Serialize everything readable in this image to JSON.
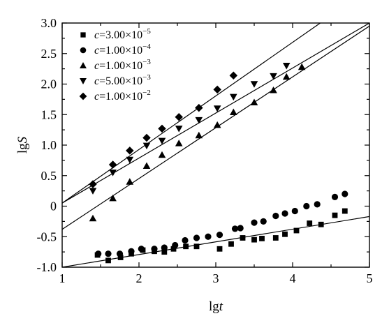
{
  "chart_data": {
    "type": "scatter",
    "xlabel_prefix": "lg",
    "xlabel_var": "t",
    "ylabel_prefix": "lg",
    "ylabel_var": "S",
    "xlim": [
      1,
      5
    ],
    "ylim": [
      -1.0,
      3.0
    ],
    "xticks": [
      "1",
      "2",
      "3",
      "4",
      "5"
    ],
    "yticks": [
      "-1.0",
      "-0.5",
      "0",
      "0.5",
      "1.0",
      "1.5",
      "2.0",
      "2.5",
      "3.0"
    ],
    "xtick_values": [
      1,
      2,
      3,
      4,
      5
    ],
    "ytick_values": [
      -1.0,
      -0.5,
      0,
      0.5,
      1.0,
      1.5,
      2.0,
      2.5,
      3.0
    ],
    "legend_position": "top-left",
    "series": [
      {
        "marker": "square",
        "legend_prefix": "c=3.00×10",
        "legend_exp": "−5",
        "x": [
          1.46,
          1.6,
          1.76,
          1.9,
          2.05,
          2.2,
          2.33,
          2.45,
          2.61,
          2.75,
          3.05,
          3.2,
          3.35,
          3.5,
          3.6,
          3.78,
          3.9,
          4.05,
          4.22,
          4.37,
          4.55,
          4.68
        ],
        "y": [
          -0.8,
          -0.89,
          -0.84,
          -0.78,
          -0.72,
          -0.74,
          -0.75,
          -0.7,
          -0.66,
          -0.66,
          -0.7,
          -0.62,
          -0.52,
          -0.55,
          -0.53,
          -0.52,
          -0.46,
          -0.4,
          -0.28,
          -0.3,
          -0.15,
          -0.08
        ],
        "fit": [
          [
            1.0,
            -1.0
          ],
          [
            5.0,
            -0.17
          ]
        ]
      },
      {
        "marker": "circle",
        "legend_prefix": "c=1.00×10",
        "legend_exp": "−4",
        "x": [
          1.47,
          1.6,
          1.75,
          1.9,
          2.03,
          2.2,
          2.33,
          2.47,
          2.6,
          2.75,
          2.9,
          3.05,
          3.25,
          3.32,
          3.5,
          3.62,
          3.78,
          3.9,
          4.03,
          4.18,
          4.32,
          4.55,
          4.68
        ],
        "y": [
          -0.78,
          -0.78,
          -0.78,
          -0.74,
          -0.7,
          -0.7,
          -0.68,
          -0.64,
          -0.56,
          -0.52,
          -0.5,
          -0.47,
          -0.37,
          -0.36,
          -0.27,
          -0.25,
          -0.16,
          -0.12,
          -0.08,
          0.0,
          0.03,
          0.15,
          0.2
        ]
      },
      {
        "marker": "triangle-up",
        "legend_prefix": "c=1.00×10",
        "legend_exp": "−3",
        "x": [
          1.4,
          1.66,
          1.88,
          2.1,
          2.3,
          2.52,
          2.78,
          3.02,
          3.23,
          3.5,
          3.75,
          3.92,
          4.12
        ],
        "y": [
          -0.2,
          0.13,
          0.4,
          0.66,
          0.84,
          1.03,
          1.16,
          1.33,
          1.54,
          1.7,
          1.9,
          2.12,
          2.28
        ],
        "fit": [
          [
            1.0,
            -0.38
          ],
          [
            5.0,
            2.95
          ]
        ]
      },
      {
        "marker": "triangle-down",
        "legend_prefix": "c=5.00×10",
        "legend_exp": "−3",
        "x": [
          1.4,
          1.66,
          1.88,
          2.1,
          2.3,
          2.52,
          2.78,
          3.02,
          3.23,
          3.5,
          3.75,
          3.92
        ],
        "y": [
          0.25,
          0.55,
          0.76,
          0.99,
          1.07,
          1.27,
          1.41,
          1.6,
          1.79,
          2.0,
          2.13,
          2.3
        ],
        "fit": [
          [
            1.0,
            0.05
          ],
          [
            5.0,
            3.0
          ]
        ]
      },
      {
        "marker": "diamond",
        "legend_prefix": "c=1.00×10",
        "legend_exp": "−2",
        "x": [
          1.4,
          1.66,
          1.88,
          2.1,
          2.3,
          2.52,
          2.78,
          3.02,
          3.23
        ],
        "y": [
          0.36,
          0.68,
          0.91,
          1.12,
          1.27,
          1.46,
          1.61,
          1.91,
          2.14
        ],
        "fit": [
          [
            1.0,
            0.05
          ],
          [
            4.36,
            3.0
          ]
        ]
      }
    ]
  }
}
